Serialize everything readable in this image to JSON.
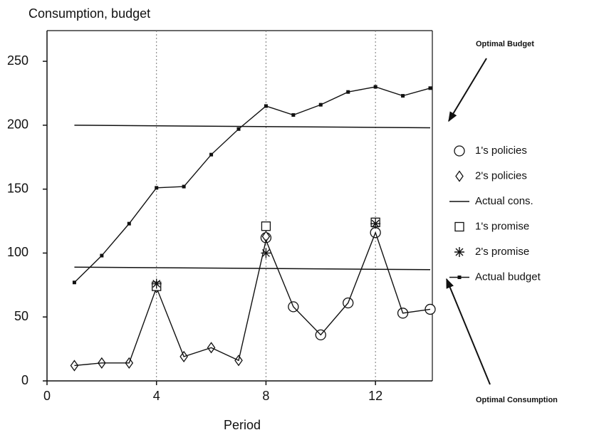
{
  "chart_data": {
    "type": "line",
    "title": "Consumption, budget",
    "x_label": "Period",
    "x": [
      1,
      2,
      3,
      4,
      5,
      6,
      7,
      8,
      9,
      10,
      11,
      12,
      13,
      14
    ],
    "xlim": [
      0,
      14
    ],
    "xticks": [
      0,
      4,
      8,
      12
    ],
    "ylim": [
      0,
      274
    ],
    "yticks": [
      0,
      50,
      100,
      150,
      200,
      250
    ],
    "grid_x": true,
    "series": [
      {
        "name": "1's policies",
        "color": "#111111",
        "marker": "circle",
        "line": false,
        "values": [
          null,
          null,
          null,
          null,
          null,
          null,
          null,
          112,
          58,
          36,
          61,
          116,
          53,
          56
        ]
      },
      {
        "name": "2's policies",
        "color": "#111111",
        "marker": "diamond",
        "line": false,
        "values": [
          12,
          14,
          14,
          73,
          19,
          26,
          16,
          113,
          null,
          null,
          null,
          null,
          null,
          null
        ]
      },
      {
        "name": "Actual cons.",
        "color": "#111111",
        "marker": "none",
        "line": true,
        "values": [
          12,
          14,
          14,
          73,
          19,
          26,
          16,
          110,
          58,
          36,
          61,
          116,
          53,
          56
        ]
      },
      {
        "name": "1's promise",
        "color": "#111111",
        "marker": "square",
        "line": false,
        "values": [
          null,
          null,
          null,
          74,
          null,
          null,
          null,
          121,
          null,
          null,
          null,
          124,
          null,
          null
        ]
      },
      {
        "name": "2's promise",
        "color": "#111111",
        "marker": "star",
        "line": false,
        "values": [
          null,
          null,
          null,
          76,
          null,
          null,
          null,
          100,
          null,
          null,
          null,
          123,
          null,
          null
        ]
      },
      {
        "name": "Actual budget",
        "color": "#111111",
        "marker": "dot",
        "line": true,
        "values": [
          77,
          98,
          123,
          151,
          152,
          177,
          197,
          215,
          208,
          216,
          226,
          230,
          223,
          229
        ]
      }
    ],
    "reference_lines": [
      {
        "label": "Optimal Budget",
        "x": [
          1,
          14
        ],
        "values": [
          200,
          198
        ]
      },
      {
        "label": "Optimal Consumption",
        "x": [
          1,
          14
        ],
        "values": [
          89,
          87
        ]
      }
    ]
  }
}
